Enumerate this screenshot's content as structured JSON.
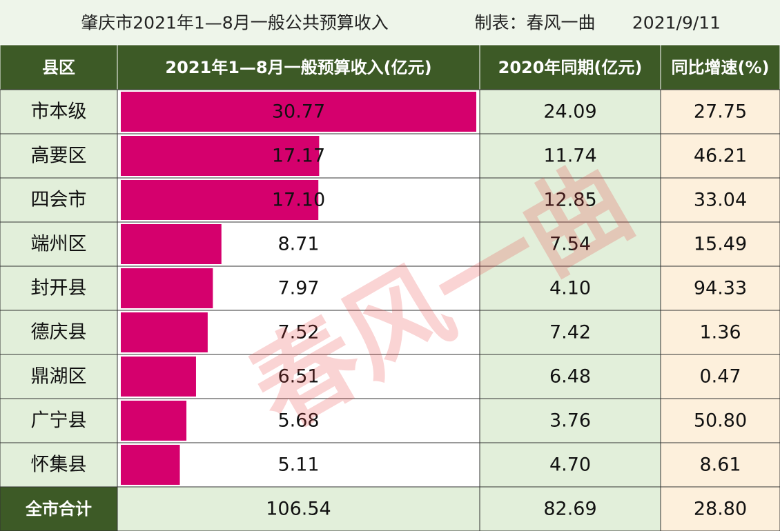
{
  "header": {
    "title": "肇庆市2021年1—8月一般公共预算收入",
    "author": "制表：春风一曲",
    "date": "2021/9/11"
  },
  "table": {
    "columns": [
      "县区",
      "2021年1—8月一般预算收入(亿元)",
      "2020年同期(亿元)",
      "同比增速(%)"
    ],
    "rows": [
      [
        "市本级",
        "30.77",
        "24.09",
        "27.75"
      ],
      [
        "高要区",
        "17.17",
        "11.74",
        "46.21"
      ],
      [
        "四会市",
        "17.10",
        "12.85",
        "33.04"
      ],
      [
        "端州区",
        "8.71",
        "7.54",
        "15.49"
      ],
      [
        "封开县",
        "7.97",
        "4.10",
        "94.33"
      ],
      [
        "德庆县",
        "7.52",
        "7.42",
        "1.36"
      ],
      [
        "鼎湖区",
        "6.51",
        "6.48",
        "0.47"
      ],
      [
        "广宁县",
        "5.68",
        "3.76",
        "50.80"
      ],
      [
        "怀集县",
        "5.11",
        "4.70",
        "8.61"
      ]
    ],
    "total": [
      "全市合计",
      "106.54",
      "82.69",
      "28.80"
    ]
  },
  "watermark": "春风一曲"
}
